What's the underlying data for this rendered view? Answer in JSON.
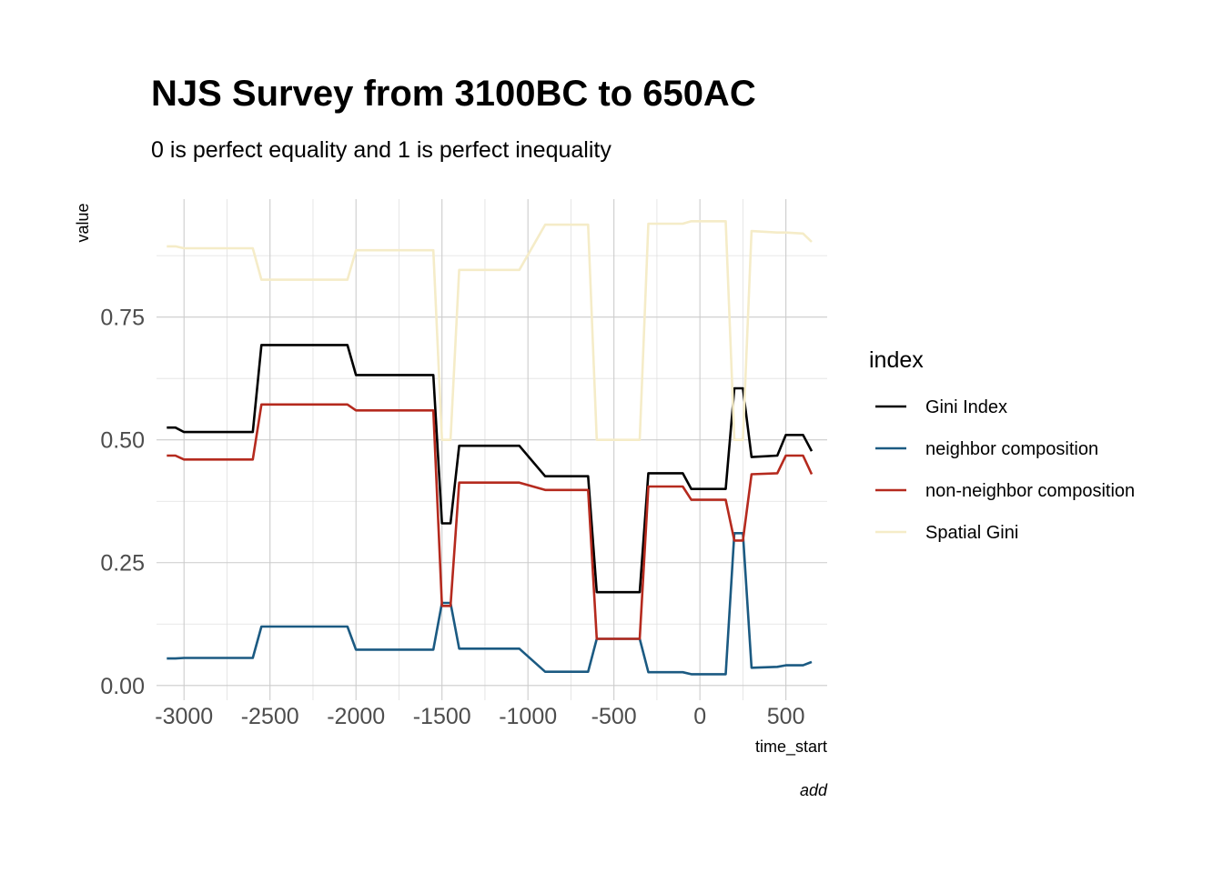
{
  "chart_data": {
    "type": "line",
    "title": "NJS Survey from 3100BC to 650AC",
    "subtitle": "0 is perfect equality and 1 is perfect inequality",
    "xlabel": "time_start",
    "ylabel": "value",
    "caption": "add",
    "xlim": [
      -3160,
      740
    ],
    "ylim": [
      -0.03,
      0.99
    ],
    "x_ticks": [
      -3000,
      -2500,
      -2000,
      -1500,
      -1000,
      -500,
      0,
      500
    ],
    "x_tick_labels": [
      "-3000",
      "-2500",
      "-2000",
      "-1500",
      "-1000",
      "-500",
      "0",
      "500"
    ],
    "y_ticks": [
      0,
      0.25,
      0.5,
      0.75
    ],
    "y_tick_labels": [
      "0.00",
      "0.25",
      "0.50",
      "0.75"
    ],
    "grid": true,
    "legend": {
      "title": "index",
      "position": "right"
    },
    "series": [
      {
        "name": "Gini Index",
        "color": "#000000",
        "x": [
          -3100,
          -3050,
          -3000,
          -2600,
          -2550,
          -2050,
          -2000,
          -1550,
          -1500,
          -1450,
          -1400,
          -1050,
          -900,
          -650,
          -600,
          -350,
          -300,
          -100,
          -50,
          150,
          200,
          250,
          300,
          450,
          500,
          600,
          650
        ],
        "y": [
          0.525,
          0.525,
          0.516,
          0.516,
          0.693,
          0.693,
          0.632,
          0.632,
          0.33,
          0.33,
          0.488,
          0.488,
          0.426,
          0.426,
          0.19,
          0.19,
          0.432,
          0.432,
          0.4,
          0.4,
          0.605,
          0.605,
          0.465,
          0.468,
          0.51,
          0.51,
          0.477
        ]
      },
      {
        "name": "neighbor composition",
        "color": "#1b5a82",
        "x": [
          -3100,
          -3050,
          -3000,
          -2600,
          -2550,
          -2050,
          -2000,
          -1550,
          -1500,
          -1450,
          -1400,
          -1050,
          -900,
          -650,
          -600,
          -350,
          -300,
          -100,
          -50,
          150,
          200,
          250,
          300,
          450,
          500,
          600,
          650
        ],
        "y": [
          0.055,
          0.055,
          0.056,
          0.056,
          0.12,
          0.12,
          0.073,
          0.073,
          0.168,
          0.168,
          0.075,
          0.075,
          0.028,
          0.028,
          0.095,
          0.095,
          0.027,
          0.027,
          0.023,
          0.023,
          0.31,
          0.31,
          0.036,
          0.038,
          0.041,
          0.041,
          0.048
        ]
      },
      {
        "name": "non-neighbor composition",
        "color": "#b52a1e",
        "x": [
          -3100,
          -3050,
          -3000,
          -2600,
          -2550,
          -2050,
          -2000,
          -1550,
          -1500,
          -1450,
          -1400,
          -1050,
          -900,
          -650,
          -600,
          -350,
          -300,
          -100,
          -50,
          150,
          200,
          250,
          300,
          450,
          500,
          600,
          650
        ],
        "y": [
          0.468,
          0.468,
          0.46,
          0.46,
          0.572,
          0.572,
          0.56,
          0.56,
          0.162,
          0.162,
          0.413,
          0.413,
          0.398,
          0.398,
          0.095,
          0.095,
          0.405,
          0.405,
          0.378,
          0.378,
          0.295,
          0.295,
          0.43,
          0.432,
          0.468,
          0.468,
          0.43
        ]
      },
      {
        "name": "Spatial Gini",
        "color": "#f5ecc8",
        "x": [
          -3100,
          -3050,
          -3000,
          -2600,
          -2550,
          -2050,
          -2000,
          -1550,
          -1500,
          -1450,
          -1400,
          -1050,
          -900,
          -650,
          -600,
          -350,
          -300,
          -100,
          -50,
          150,
          200,
          250,
          300,
          450,
          500,
          600,
          650
        ],
        "y": [
          0.894,
          0.894,
          0.89,
          0.89,
          0.826,
          0.826,
          0.886,
          0.886,
          0.5,
          0.5,
          0.846,
          0.846,
          0.938,
          0.938,
          0.5,
          0.5,
          0.94,
          0.94,
          0.945,
          0.945,
          0.5,
          0.5,
          0.925,
          0.922,
          0.922,
          0.92,
          0.903
        ]
      }
    ]
  }
}
